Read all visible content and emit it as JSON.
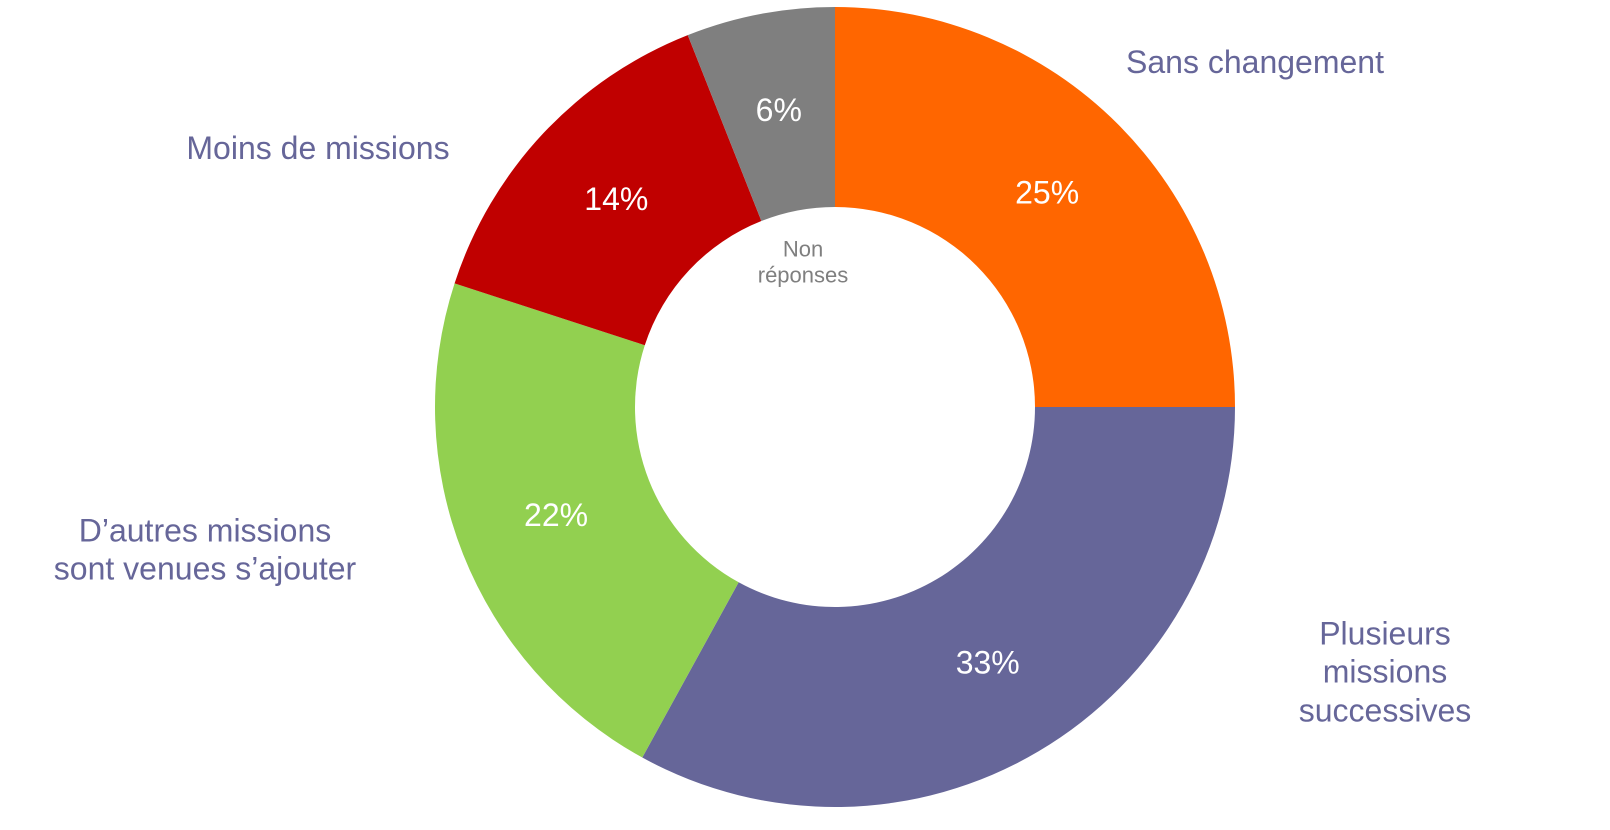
{
  "chart_data": {
    "type": "donut",
    "categories": [
      "Sans changement",
      "Plusieurs missions\nsuccessives",
      "D’autres missions\nsont venues s’ajouter",
      "Moins de missions",
      "Non\nréponses"
    ],
    "values": [
      25,
      33,
      22,
      14,
      6
    ],
    "value_labels": [
      "25%",
      "33%",
      "22%",
      "14%",
      "6%"
    ],
    "colors": [
      "#ff6600",
      "#666699",
      "#92d050",
      "#c00000",
      "#7f7f7f"
    ]
  }
}
